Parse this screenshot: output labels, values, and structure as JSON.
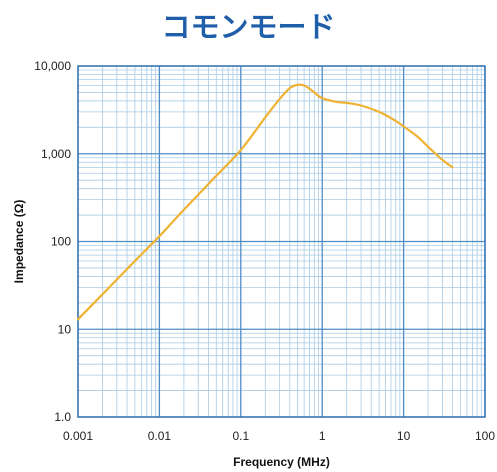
{
  "title": "コモンモード",
  "colors": {
    "title": "#1f5ea8",
    "curve": "#f0b232",
    "grid_minor": "#a9cbe6",
    "grid_major": "#4f8cc6",
    "frame": "#2f6fb0"
  },
  "chart_data": {
    "type": "line",
    "title": "コモンモード",
    "xlabel": "Frequency (MHz)",
    "ylabel": "Impedance (Ω)",
    "x_scale": "log",
    "y_scale": "log",
    "xlim": [
      0.001,
      100
    ],
    "ylim": [
      1,
      10000
    ],
    "grid": true,
    "x_ticks": [
      {
        "value": 0.001,
        "label": "0.001"
      },
      {
        "value": 0.01,
        "label": "0.01"
      },
      {
        "value": 0.1,
        "label": "0.1"
      },
      {
        "value": 1,
        "label": "1"
      },
      {
        "value": 10,
        "label": "10"
      },
      {
        "value": 100,
        "label": "100"
      }
    ],
    "y_ticks": [
      {
        "value": 1,
        "label": "1.0"
      },
      {
        "value": 10,
        "label": "10"
      },
      {
        "value": 100,
        "label": "100"
      },
      {
        "value": 1000,
        "label": "1,000"
      },
      {
        "value": 10000,
        "label": "10,000"
      }
    ],
    "series": [
      {
        "x": [
          0.001,
          0.002,
          0.005,
          0.01,
          0.02,
          0.05,
          0.1,
          0.2,
          0.3,
          0.4,
          0.5,
          0.6,
          0.7,
          0.8,
          1,
          1.5,
          2,
          3,
          5,
          7,
          10,
          15,
          20,
          30,
          40
        ],
        "y": [
          13,
          25,
          60,
          115,
          230,
          560,
          1100,
          2600,
          4200,
          5600,
          6100,
          6000,
          5500,
          5000,
          4300,
          3900,
          3800,
          3550,
          3000,
          2550,
          2050,
          1550,
          1200,
          850,
          700
        ]
      }
    ]
  }
}
